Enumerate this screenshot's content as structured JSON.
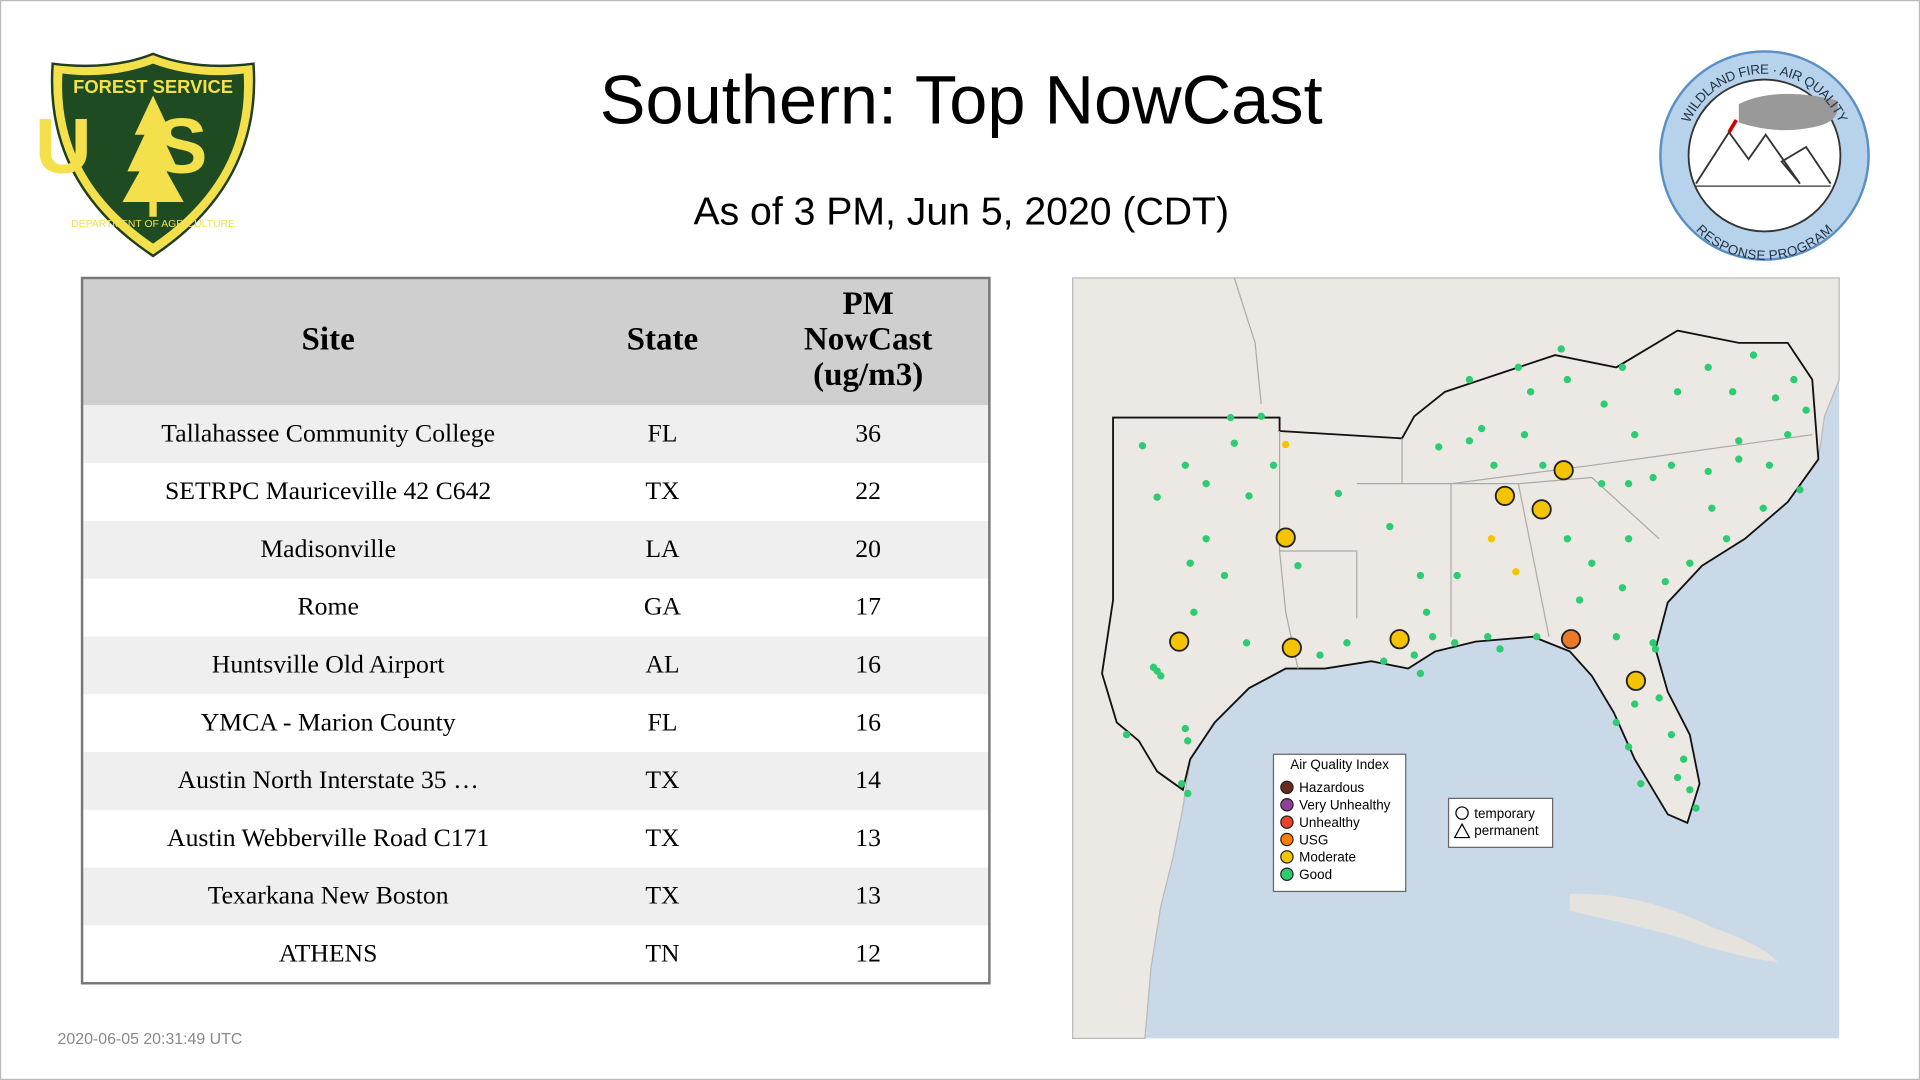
{
  "header": {
    "title": "Southern: Top NowCast",
    "subtitle": "As of  3 PM, Jun  5, 2020 (CDT)"
  },
  "logos": {
    "left": {
      "top": "FOREST SERVICE",
      "center": "US",
      "bottom": "DEPARTMENT OF AGRICULTURE"
    },
    "right": {
      "top": "WILDLAND FIRE · AIR QUALITY",
      "bottom": "RESPONSE PROGRAM"
    }
  },
  "table": {
    "columns": [
      "Site",
      "State",
      "PM NowCast (ug/m3)"
    ],
    "rows": [
      [
        "Tallahassee Community College",
        "FL",
        "36"
      ],
      [
        "SETRPC Mauriceville 42 C642",
        "TX",
        "22"
      ],
      [
        "Madisonville",
        "LA",
        "20"
      ],
      [
        "Rome",
        "GA",
        "17"
      ],
      [
        "Huntsville Old Airport",
        "AL",
        "16"
      ],
      [
        "YMCA - Marion County",
        "FL",
        "16"
      ],
      [
        "Austin North Interstate 35 …",
        "TX",
        "14"
      ],
      [
        "Austin Webberville Road C171",
        "TX",
        "13"
      ],
      [
        "Texarkana New Boston",
        "TX",
        "13"
      ],
      [
        "ATHENS",
        "TN",
        "12"
      ]
    ]
  },
  "map": {
    "legend": {
      "title": "Air Quality Index",
      "items": [
        "Hazardous",
        "Very Unhealthy",
        "Unhealthy",
        "USG",
        "Moderate",
        "Good"
      ]
    },
    "shapes": [
      "temporary",
      "permanent"
    ]
  },
  "footer": {
    "timestamp": "2020-06-05 20:31:49 UTC"
  }
}
